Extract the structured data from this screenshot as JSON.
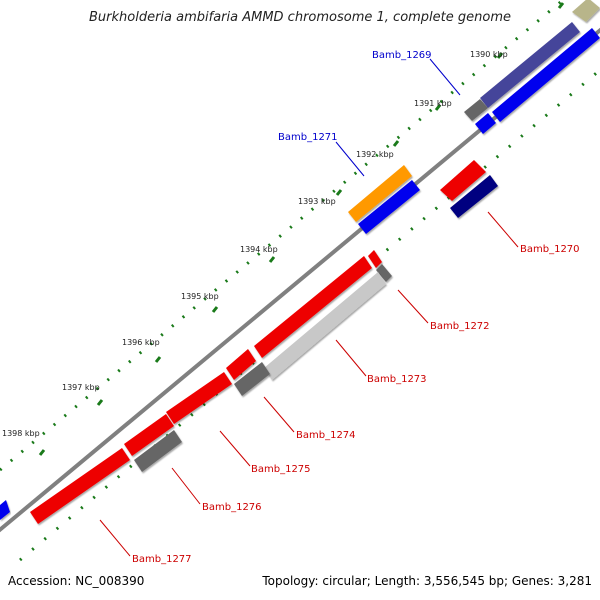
{
  "title": "Burkholderia ambifaria AMMD chromosome 1, complete genome",
  "footer": {
    "accession": "Accession: NC_008390",
    "summary": "Topology: circular; Length: 3,556,545 bp; Genes: 3,281"
  },
  "colors": {
    "backbone": "#888888",
    "tick": "#1a7a1a",
    "label_forward": "#0000cc",
    "label_reverse": "#cc0000",
    "red": "#ee0000",
    "blue": "#0000ee",
    "navy": "#000080",
    "slate": "#44449a",
    "gray": "#666666",
    "lightgray": "#c8c8c8",
    "orange": "#ff9900",
    "khaki": "#b8b58a"
  },
  "kbp_labels": [
    "1390 kbp",
    "1391 kbp",
    "1392 kbp",
    "1393 kbp",
    "1394 kbp",
    "1395 kbp",
    "1396 kbp",
    "1397 kbp",
    "1398 kbp"
  ],
  "gene_labels": [
    {
      "text": "Bamb_1269",
      "strand": "forward"
    },
    {
      "text": "Bamb_1271",
      "strand": "forward"
    },
    {
      "text": "Bamb_1270",
      "strand": "reverse"
    },
    {
      "text": "Bamb_1272",
      "strand": "reverse"
    },
    {
      "text": "Bamb_1273",
      "strand": "reverse"
    },
    {
      "text": "Bamb_1274",
      "strand": "reverse"
    },
    {
      "text": "Bamb_1275",
      "strand": "reverse"
    },
    {
      "text": "Bamb_1276",
      "strand": "reverse"
    },
    {
      "text": "Bamb_1277",
      "strand": "reverse"
    }
  ]
}
